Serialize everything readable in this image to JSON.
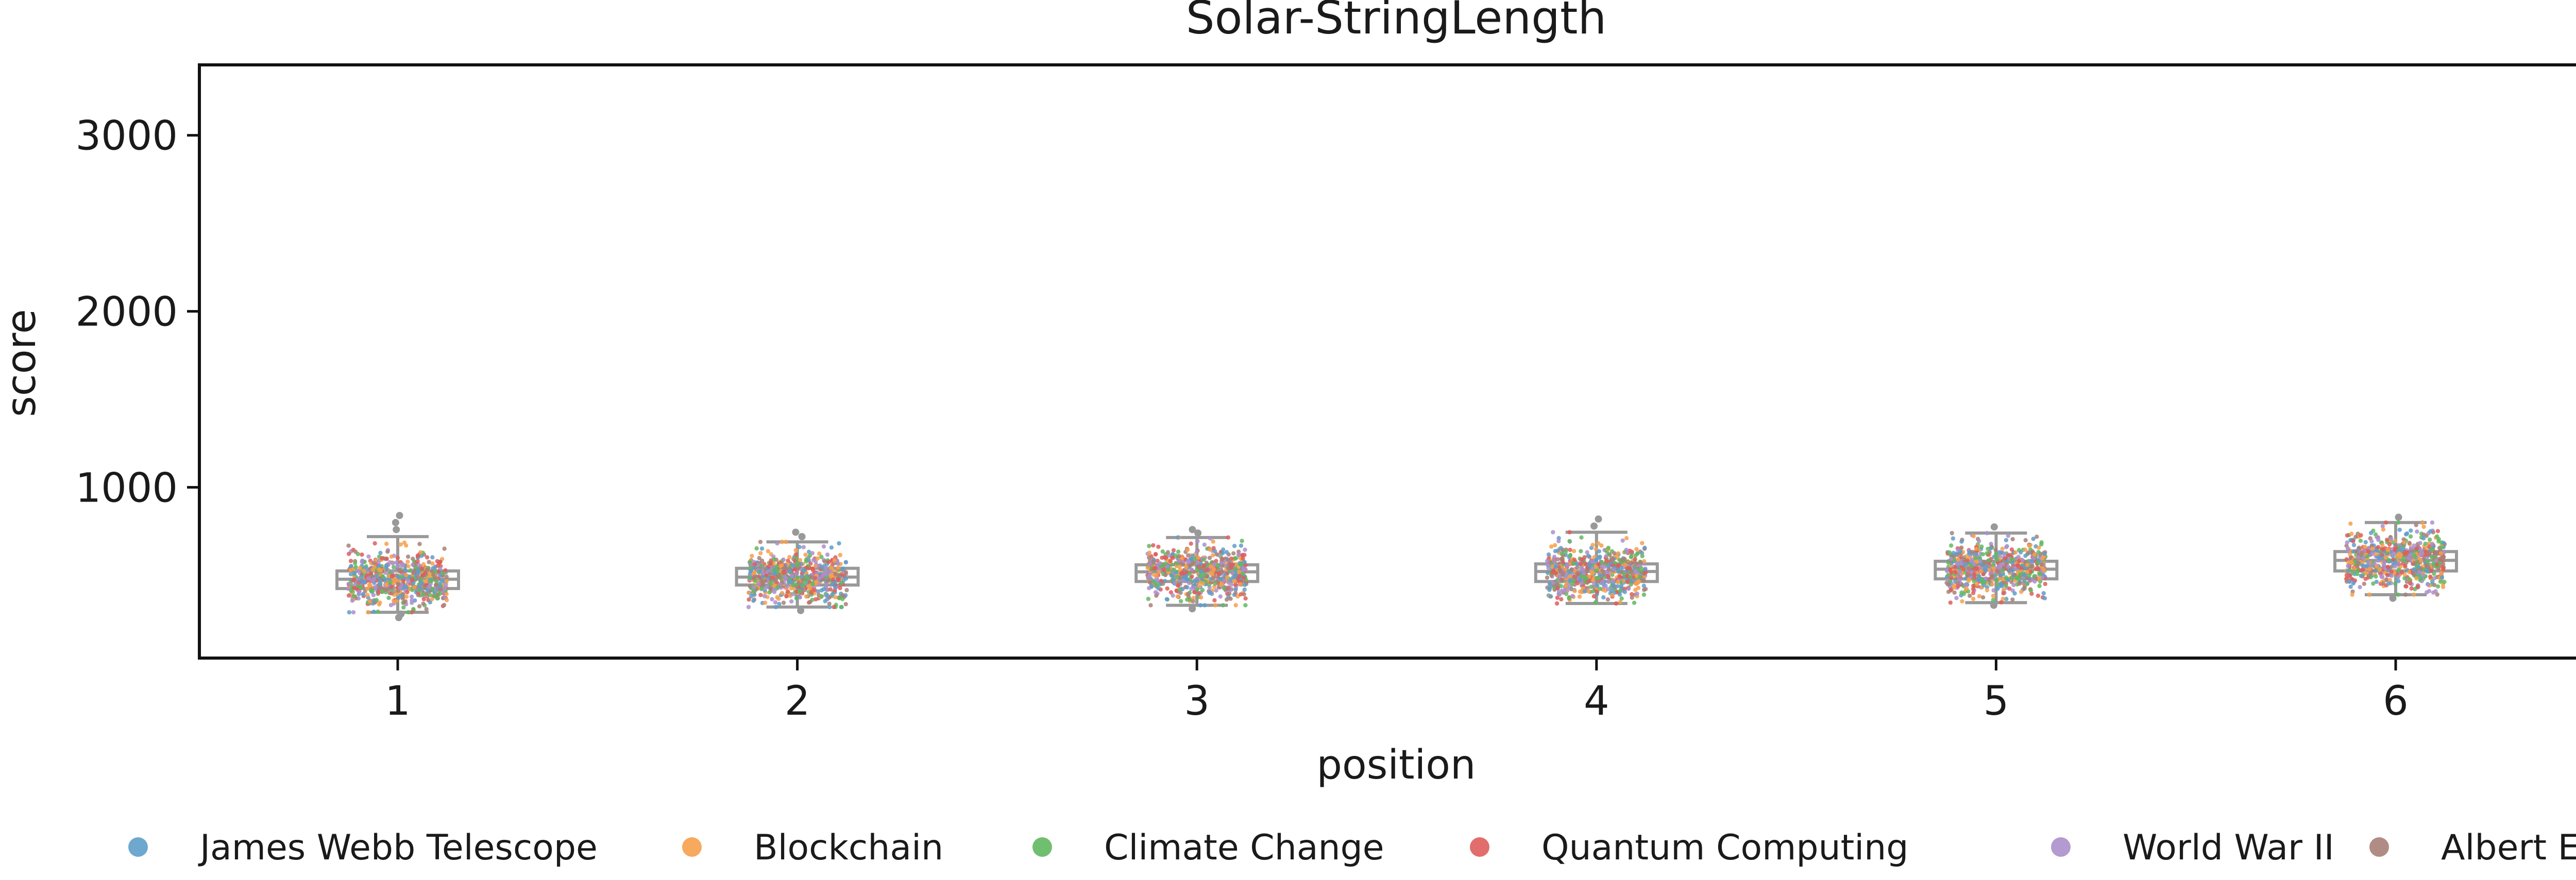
{
  "chart_data": {
    "type": "box+strip",
    "title": "Solar-StringLength",
    "xlabel": "position",
    "ylabel": "score",
    "categories": [
      "1",
      "2",
      "3",
      "4",
      "5",
      "6"
    ],
    "ylim": [
      30,
      3400
    ],
    "yticks": [
      1000,
      2000,
      3000
    ],
    "grid": false,
    "legend_position": "bottom",
    "box_color": "#999999",
    "boxes": [
      {
        "category": "1",
        "whisker_low": 290,
        "q1": 425,
        "median": 478,
        "q3": 525,
        "whisker_high": 720,
        "outliers_high": [
          760,
          800,
          840
        ],
        "outliers_low": [
          260,
          280
        ]
      },
      {
        "category": "2",
        "whisker_low": 320,
        "q1": 445,
        "median": 490,
        "q3": 540,
        "whisker_high": 690,
        "outliers_high": [
          720,
          745
        ],
        "outliers_low": [
          300
        ]
      },
      {
        "category": "3",
        "whisker_low": 330,
        "q1": 465,
        "median": 520,
        "q3": 560,
        "whisker_high": 715,
        "outliers_high": [
          740,
          760
        ],
        "outliers_low": [
          310
        ]
      },
      {
        "category": "4",
        "whisker_low": 340,
        "q1": 465,
        "median": 522,
        "q3": 565,
        "whisker_high": 745,
        "outliers_high": [
          780,
          820
        ],
        "outliers_low": []
      },
      {
        "category": "5",
        "whisker_low": 345,
        "q1": 480,
        "median": 535,
        "q3": 580,
        "whisker_high": 740,
        "outliers_high": [
          775
        ],
        "outliers_low": [
          330
        ]
      },
      {
        "category": "6",
        "whisker_low": 390,
        "q1": 525,
        "median": 585,
        "q3": 635,
        "whisker_high": 800,
        "outliers_high": [
          830
        ],
        "outliers_low": [
          370
        ]
      }
    ],
    "series": [
      {
        "name": "James Webb Telescope",
        "color": "#5f9ec9"
      },
      {
        "name": "Blockchain",
        "color": "#f6a04d"
      },
      {
        "name": "Climate Change",
        "color": "#61b861"
      },
      {
        "name": "Quantum Computing",
        "color": "#de5e5c"
      },
      {
        "name": "World War II",
        "color": "#ab8fcc"
      },
      {
        "name": "Albert Einstein",
        "color": "#a98078"
      }
    ]
  }
}
